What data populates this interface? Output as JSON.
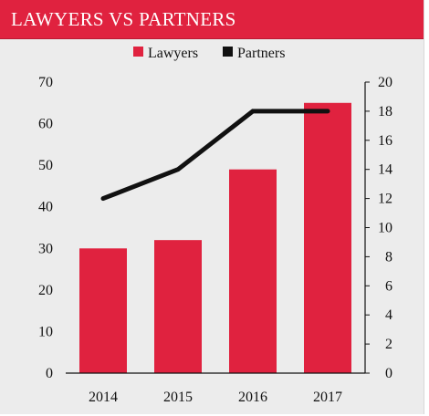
{
  "title": "LAWYERS VS PARTNERS",
  "colors": {
    "lawyers": "#e0223f",
    "partners": "#111111",
    "title_bg": "#e0223f",
    "panel_bg": "#ececec"
  },
  "chart_data": {
    "type": "bar",
    "categories": [
      "2014",
      "2015",
      "2016",
      "2017"
    ],
    "series": [
      {
        "name": "Lawyers",
        "type": "bar",
        "axis": "left",
        "values": [
          30,
          32,
          49,
          65
        ]
      },
      {
        "name": "Partners",
        "type": "line",
        "axis": "right",
        "values": [
          12,
          14,
          18,
          18
        ]
      }
    ],
    "y_left": {
      "range": [
        0,
        70
      ],
      "ticks": [
        "0",
        "10",
        "20",
        "30",
        "40",
        "50",
        "60",
        "70"
      ]
    },
    "y_right": {
      "range": [
        0,
        20
      ],
      "ticks": [
        "0",
        "2",
        "4",
        "6",
        "8",
        "10",
        "12",
        "14",
        "16",
        "18",
        "20"
      ]
    },
    "legend": {
      "placement": "top-center",
      "labels": [
        "Lawyers",
        "Partners"
      ]
    },
    "grid": false
  }
}
